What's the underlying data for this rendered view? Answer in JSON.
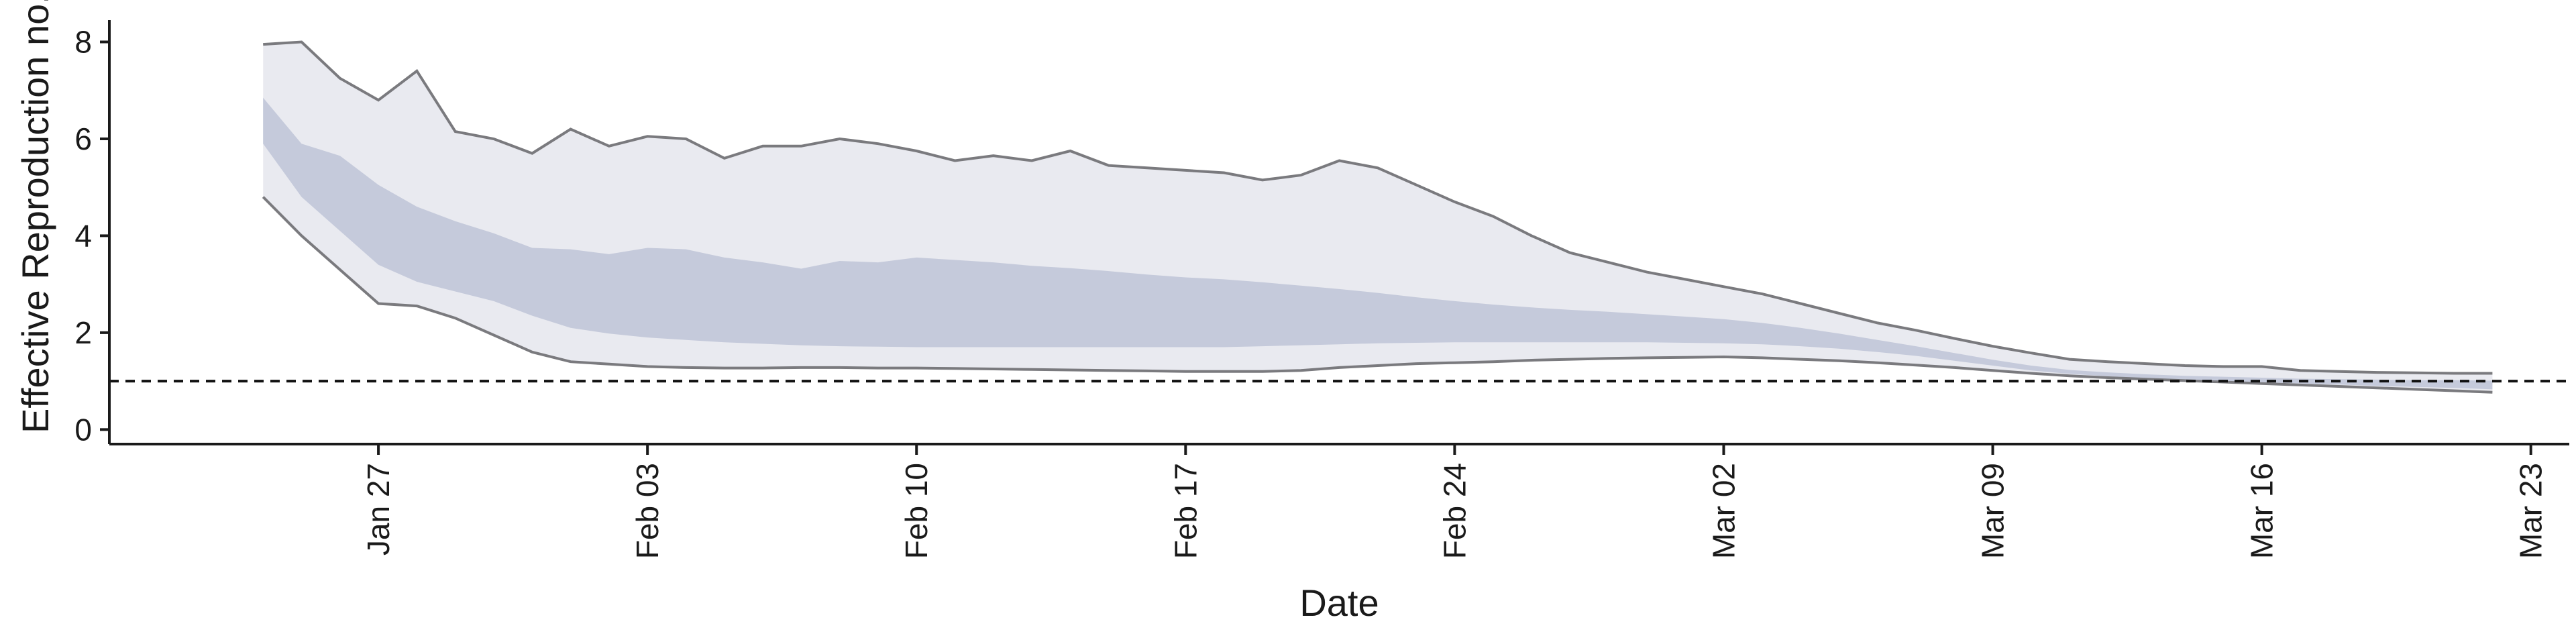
{
  "chart_data": {
    "type": "area",
    "xlabel": "Date",
    "ylabel": "Effective Reproduction no.",
    "ylim": [
      -0.3,
      8.45
    ],
    "xlim": [
      "2020-01-20",
      "2020-03-24"
    ],
    "y_ticks": [
      0,
      2,
      4,
      6,
      8
    ],
    "x_ticks": [
      {
        "date": "2020-01-27",
        "label": "Jan 27"
      },
      {
        "date": "2020-02-03",
        "label": "Feb 03"
      },
      {
        "date": "2020-02-10",
        "label": "Feb 10"
      },
      {
        "date": "2020-02-17",
        "label": "Feb 17"
      },
      {
        "date": "2020-02-24",
        "label": "Feb 24"
      },
      {
        "date": "2020-03-02",
        "label": "Mar 02"
      },
      {
        "date": "2020-03-09",
        "label": "Mar 09"
      },
      {
        "date": "2020-03-16",
        "label": "Mar 16"
      },
      {
        "date": "2020-03-23",
        "label": "Mar 23"
      }
    ],
    "reference_line": {
      "y": 1,
      "style": "dashed"
    },
    "colors": {
      "outer_band": "#e9eaf0",
      "inner_band": "#c5cadb",
      "bound_line": "#7a7a7e",
      "reference": "#111111"
    },
    "bands": [
      {
        "role": "outer",
        "x": [
          "2020-01-24",
          "2020-01-25",
          "2020-01-26",
          "2020-01-27",
          "2020-01-28",
          "2020-01-29",
          "2020-01-30",
          "2020-01-31",
          "2020-02-01",
          "2020-02-02",
          "2020-02-03",
          "2020-02-04",
          "2020-02-05",
          "2020-02-06",
          "2020-02-07",
          "2020-02-08",
          "2020-02-09",
          "2020-02-10",
          "2020-02-11",
          "2020-02-12",
          "2020-02-13",
          "2020-02-14",
          "2020-02-15",
          "2020-02-16",
          "2020-02-17",
          "2020-02-18",
          "2020-02-19",
          "2020-02-20",
          "2020-02-21",
          "2020-02-22",
          "2020-02-23",
          "2020-02-24",
          "2020-02-25",
          "2020-02-26",
          "2020-02-27",
          "2020-02-28",
          "2020-02-29",
          "2020-03-01",
          "2020-03-02",
          "2020-03-03",
          "2020-03-04",
          "2020-03-05",
          "2020-03-06",
          "2020-03-07",
          "2020-03-08",
          "2020-03-09",
          "2020-03-10",
          "2020-03-11",
          "2020-03-12",
          "2020-03-13",
          "2020-03-14",
          "2020-03-15",
          "2020-03-16",
          "2020-03-17",
          "2020-03-18",
          "2020-03-19",
          "2020-03-20",
          "2020-03-21",
          "2020-03-22"
        ],
        "lower": [
          4.8,
          4.0,
          3.3,
          2.6,
          2.55,
          2.3,
          1.95,
          1.6,
          1.4,
          1.35,
          1.3,
          1.28,
          1.27,
          1.27,
          1.28,
          1.28,
          1.27,
          1.27,
          1.26,
          1.25,
          1.24,
          1.23,
          1.22,
          1.21,
          1.2,
          1.2,
          1.2,
          1.22,
          1.28,
          1.32,
          1.36,
          1.38,
          1.4,
          1.43,
          1.45,
          1.47,
          1.48,
          1.49,
          1.5,
          1.48,
          1.45,
          1.42,
          1.38,
          1.33,
          1.28,
          1.22,
          1.16,
          1.11,
          1.07,
          1.04,
          1.01,
          0.98,
          0.95,
          0.92,
          0.89,
          0.86,
          0.83,
          0.8,
          0.77
        ],
        "upper": [
          7.95,
          8.0,
          7.25,
          6.8,
          7.4,
          6.15,
          6.0,
          5.7,
          6.2,
          5.85,
          6.05,
          6.0,
          5.6,
          5.85,
          5.85,
          6.0,
          5.9,
          5.75,
          5.55,
          5.65,
          5.55,
          5.75,
          5.45,
          5.4,
          5.35,
          5.3,
          5.15,
          5.25,
          5.55,
          5.4,
          5.05,
          4.7,
          4.4,
          4.0,
          3.65,
          3.45,
          3.25,
          3.1,
          2.95,
          2.8,
          2.6,
          2.4,
          2.2,
          2.05,
          1.88,
          1.72,
          1.58,
          1.45,
          1.4,
          1.36,
          1.32,
          1.3,
          1.3,
          1.22,
          1.2,
          1.18,
          1.17,
          1.16,
          1.16
        ]
      },
      {
        "role": "inner",
        "x": [
          "2020-01-24",
          "2020-01-25",
          "2020-01-26",
          "2020-01-27",
          "2020-01-28",
          "2020-01-29",
          "2020-01-30",
          "2020-01-31",
          "2020-02-01",
          "2020-02-02",
          "2020-02-03",
          "2020-02-04",
          "2020-02-05",
          "2020-02-06",
          "2020-02-07",
          "2020-02-08",
          "2020-02-09",
          "2020-02-10",
          "2020-02-11",
          "2020-02-12",
          "2020-02-13",
          "2020-02-14",
          "2020-02-15",
          "2020-02-16",
          "2020-02-17",
          "2020-02-18",
          "2020-02-19",
          "2020-02-20",
          "2020-02-21",
          "2020-02-22",
          "2020-02-23",
          "2020-02-24",
          "2020-02-25",
          "2020-02-26",
          "2020-02-27",
          "2020-02-28",
          "2020-02-29",
          "2020-03-01",
          "2020-03-02",
          "2020-03-03",
          "2020-03-04",
          "2020-03-05",
          "2020-03-06",
          "2020-03-07",
          "2020-03-08",
          "2020-03-09",
          "2020-03-10",
          "2020-03-11",
          "2020-03-12",
          "2020-03-13",
          "2020-03-14",
          "2020-03-15",
          "2020-03-16",
          "2020-03-17",
          "2020-03-18",
          "2020-03-19",
          "2020-03-20",
          "2020-03-21",
          "2020-03-22"
        ],
        "lower": [
          5.9,
          4.8,
          4.1,
          3.4,
          3.05,
          2.85,
          2.65,
          2.35,
          2.1,
          1.98,
          1.9,
          1.85,
          1.8,
          1.77,
          1.74,
          1.72,
          1.71,
          1.7,
          1.7,
          1.7,
          1.7,
          1.7,
          1.7,
          1.7,
          1.7,
          1.7,
          1.72,
          1.74,
          1.76,
          1.78,
          1.79,
          1.8,
          1.8,
          1.8,
          1.8,
          1.8,
          1.8,
          1.79,
          1.78,
          1.76,
          1.72,
          1.67,
          1.6,
          1.52,
          1.42,
          1.32,
          1.22,
          1.15,
          1.1,
          1.06,
          1.03,
          1.0,
          0.98,
          0.95,
          0.93,
          0.9,
          0.88,
          0.86,
          0.83
        ],
        "upper": [
          6.85,
          5.9,
          5.65,
          5.05,
          4.6,
          4.3,
          4.05,
          3.75,
          3.72,
          3.62,
          3.75,
          3.72,
          3.55,
          3.45,
          3.32,
          3.48,
          3.45,
          3.55,
          3.5,
          3.45,
          3.38,
          3.33,
          3.27,
          3.2,
          3.14,
          3.1,
          3.04,
          2.97,
          2.9,
          2.82,
          2.73,
          2.65,
          2.58,
          2.52,
          2.47,
          2.43,
          2.38,
          2.33,
          2.28,
          2.2,
          2.1,
          1.98,
          1.85,
          1.72,
          1.58,
          1.44,
          1.32,
          1.23,
          1.18,
          1.14,
          1.11,
          1.09,
          1.07,
          1.05,
          1.04,
          1.03,
          1.02,
          1.02,
          1.01
        ]
      }
    ]
  }
}
